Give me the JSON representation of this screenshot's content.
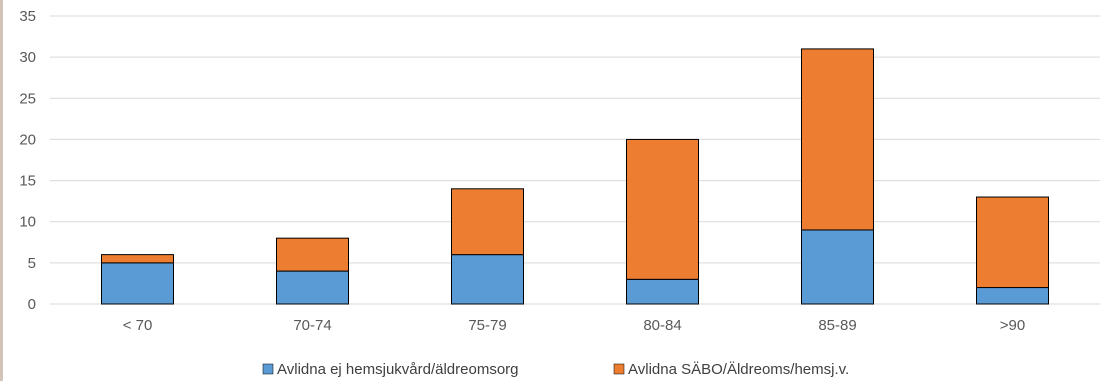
{
  "chart_data": {
    "type": "bar",
    "stacked": true,
    "categories": [
      "< 70",
      "70-74",
      "75-79",
      "80-84",
      "85-89",
      ">90"
    ],
    "series": [
      {
        "name": "Avlidna ej hemsjukvård/äldreomsorg",
        "values": [
          5,
          4,
          6,
          3,
          9,
          2
        ],
        "color": "#5b9bd5"
      },
      {
        "name": "Avlidna SÄBO/Äldreoms/hemsj.v.",
        "values": [
          1,
          4,
          8,
          17,
          22,
          11
        ],
        "color": "#ed7d31"
      }
    ],
    "y_ticks": [
      "0",
      "5",
      "10",
      "15",
      "20",
      "25",
      "30",
      "35"
    ],
    "ylim": [
      0,
      35
    ],
    "grid": true,
    "legend": "bottom",
    "title": "",
    "xlabel": "",
    "ylabel": ""
  }
}
